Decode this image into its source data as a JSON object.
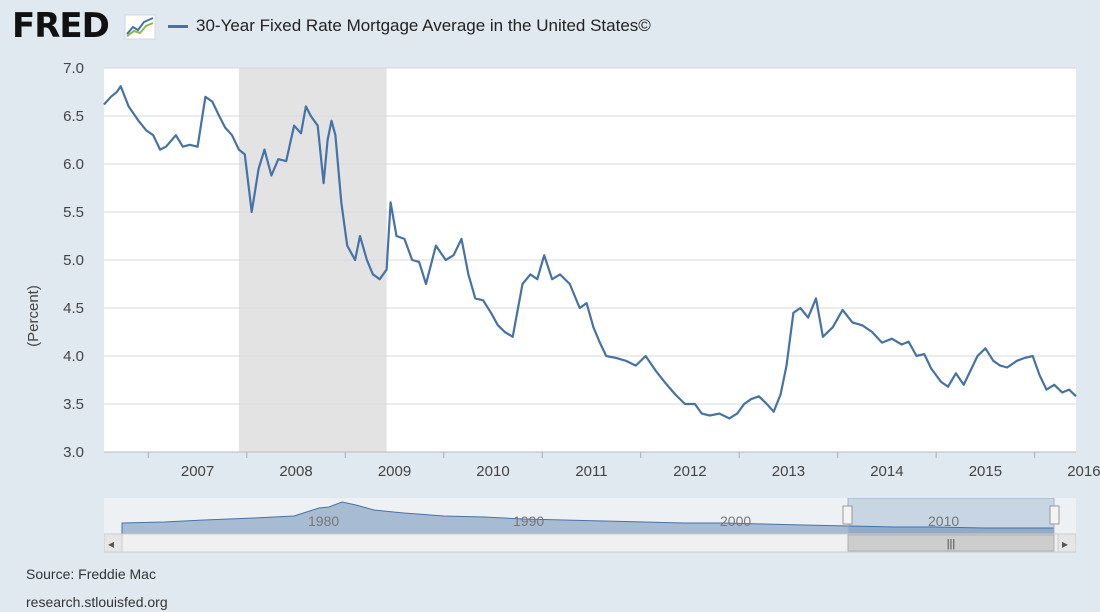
{
  "header": {
    "logo": "FRED",
    "logo_icon": "chart-line-icon",
    "legend_label": "30-Year Fixed Rate Mortgage Average in the United States©",
    "legend_color": "#4572a7"
  },
  "footer": {
    "source": "Source: Freddie Mac",
    "url": "research.stlouisfed.org"
  },
  "navigator": {
    "labels": [
      "1980",
      "1990",
      "2000",
      "2010"
    ],
    "scroll_left": "◂",
    "scroll_right": "▸",
    "grip": "|||"
  },
  "colors": {
    "background": "#e1e9f0",
    "plot": "#ffffff",
    "series": "#4572a7",
    "recession": "#e3e3e3",
    "grid": "#d8d8d8"
  },
  "chart_data": {
    "type": "line",
    "title": "",
    "xlabel": "",
    "ylabel": "(Percent)",
    "xlim": [
      2006.55,
      2016.42
    ],
    "ylim": [
      3.0,
      7.0
    ],
    "yticks": [
      "3.0",
      "3.5",
      "4.0",
      "4.5",
      "5.0",
      "5.5",
      "6.0",
      "6.5",
      "7.0"
    ],
    "xticks": [
      "2007",
      "2008",
      "2009",
      "2010",
      "2011",
      "2012",
      "2013",
      "2014",
      "2015",
      "2016"
    ],
    "grid": true,
    "legend": "top-left",
    "recession": [
      2007.92,
      2009.42
    ],
    "series": [
      {
        "name": "30-Year Fixed Rate Mortgage Average in the United States©",
        "x": [
          2006.55,
          2006.62,
          2006.68,
          2006.72,
          2006.8,
          2006.9,
          2006.98,
          2007.05,
          2007.12,
          2007.18,
          2007.28,
          2007.35,
          2007.42,
          2007.5,
          2007.58,
          2007.65,
          2007.72,
          2007.78,
          2007.85,
          2007.92,
          2007.98,
          2008.05,
          2008.12,
          2008.18,
          2008.25,
          2008.32,
          2008.4,
          2008.48,
          2008.55,
          2008.6,
          2008.65,
          2008.72,
          2008.78,
          2008.82,
          2008.86,
          2008.9,
          2008.96,
          2009.02,
          2009.1,
          2009.15,
          2009.22,
          2009.28,
          2009.35,
          2009.42,
          2009.46,
          2009.52,
          2009.6,
          2009.68,
          2009.75,
          2009.82,
          2009.92,
          2010.02,
          2010.1,
          2010.18,
          2010.25,
          2010.32,
          2010.4,
          2010.48,
          2010.55,
          2010.62,
          2010.7,
          2010.8,
          2010.88,
          2010.95,
          2011.02,
          2011.1,
          2011.18,
          2011.28,
          2011.38,
          2011.45,
          2011.52,
          2011.58,
          2011.65,
          2011.75,
          2011.85,
          2011.95,
          2012.05,
          2012.15,
          2012.25,
          2012.35,
          2012.45,
          2012.55,
          2012.62,
          2012.7,
          2012.8,
          2012.9,
          2012.98,
          2013.05,
          2013.12,
          2013.2,
          2013.28,
          2013.35,
          2013.42,
          2013.48,
          2013.55,
          2013.62,
          2013.7,
          2013.78,
          2013.85,
          2013.95,
          2014.05,
          2014.15,
          2014.25,
          2014.35,
          2014.45,
          2014.55,
          2014.65,
          2014.72,
          2014.8,
          2014.88,
          2014.95,
          2015.05,
          2015.12,
          2015.2,
          2015.28,
          2015.35,
          2015.42,
          2015.5,
          2015.58,
          2015.65,
          2015.72,
          2015.82,
          2015.9,
          2015.98,
          2016.05,
          2016.12,
          2016.2,
          2016.28,
          2016.35,
          2016.42
        ],
        "values": [
          6.62,
          6.7,
          6.75,
          6.81,
          6.6,
          6.45,
          6.35,
          6.3,
          6.15,
          6.18,
          6.3,
          6.18,
          6.2,
          6.18,
          6.7,
          6.65,
          6.5,
          6.38,
          6.3,
          6.15,
          6.1,
          5.5,
          5.95,
          6.15,
          5.88,
          6.05,
          6.03,
          6.4,
          6.32,
          6.6,
          6.5,
          6.4,
          5.8,
          6.25,
          6.45,
          6.3,
          5.6,
          5.15,
          5.0,
          5.25,
          5.0,
          4.85,
          4.8,
          4.9,
          5.6,
          5.25,
          5.22,
          5.0,
          4.98,
          4.75,
          5.15,
          5.0,
          5.05,
          5.22,
          4.85,
          4.6,
          4.58,
          4.45,
          4.32,
          4.25,
          4.2,
          4.75,
          4.85,
          4.8,
          5.05,
          4.8,
          4.85,
          4.75,
          4.5,
          4.55,
          4.3,
          4.15,
          4.0,
          3.98,
          3.95,
          3.9,
          4.0,
          3.85,
          3.72,
          3.6,
          3.5,
          3.5,
          3.4,
          3.38,
          3.4,
          3.35,
          3.4,
          3.5,
          3.55,
          3.58,
          3.5,
          3.42,
          3.6,
          3.9,
          4.45,
          4.5,
          4.4,
          4.6,
          4.2,
          4.3,
          4.48,
          4.35,
          4.32,
          4.25,
          4.14,
          4.18,
          4.12,
          4.15,
          4.0,
          4.02,
          3.87,
          3.73,
          3.68,
          3.82,
          3.7,
          3.85,
          4.0,
          4.08,
          3.95,
          3.9,
          3.88,
          3.95,
          3.98,
          4.0,
          3.8,
          3.65,
          3.7,
          3.62,
          3.65,
          3.58
        ]
      }
    ]
  }
}
